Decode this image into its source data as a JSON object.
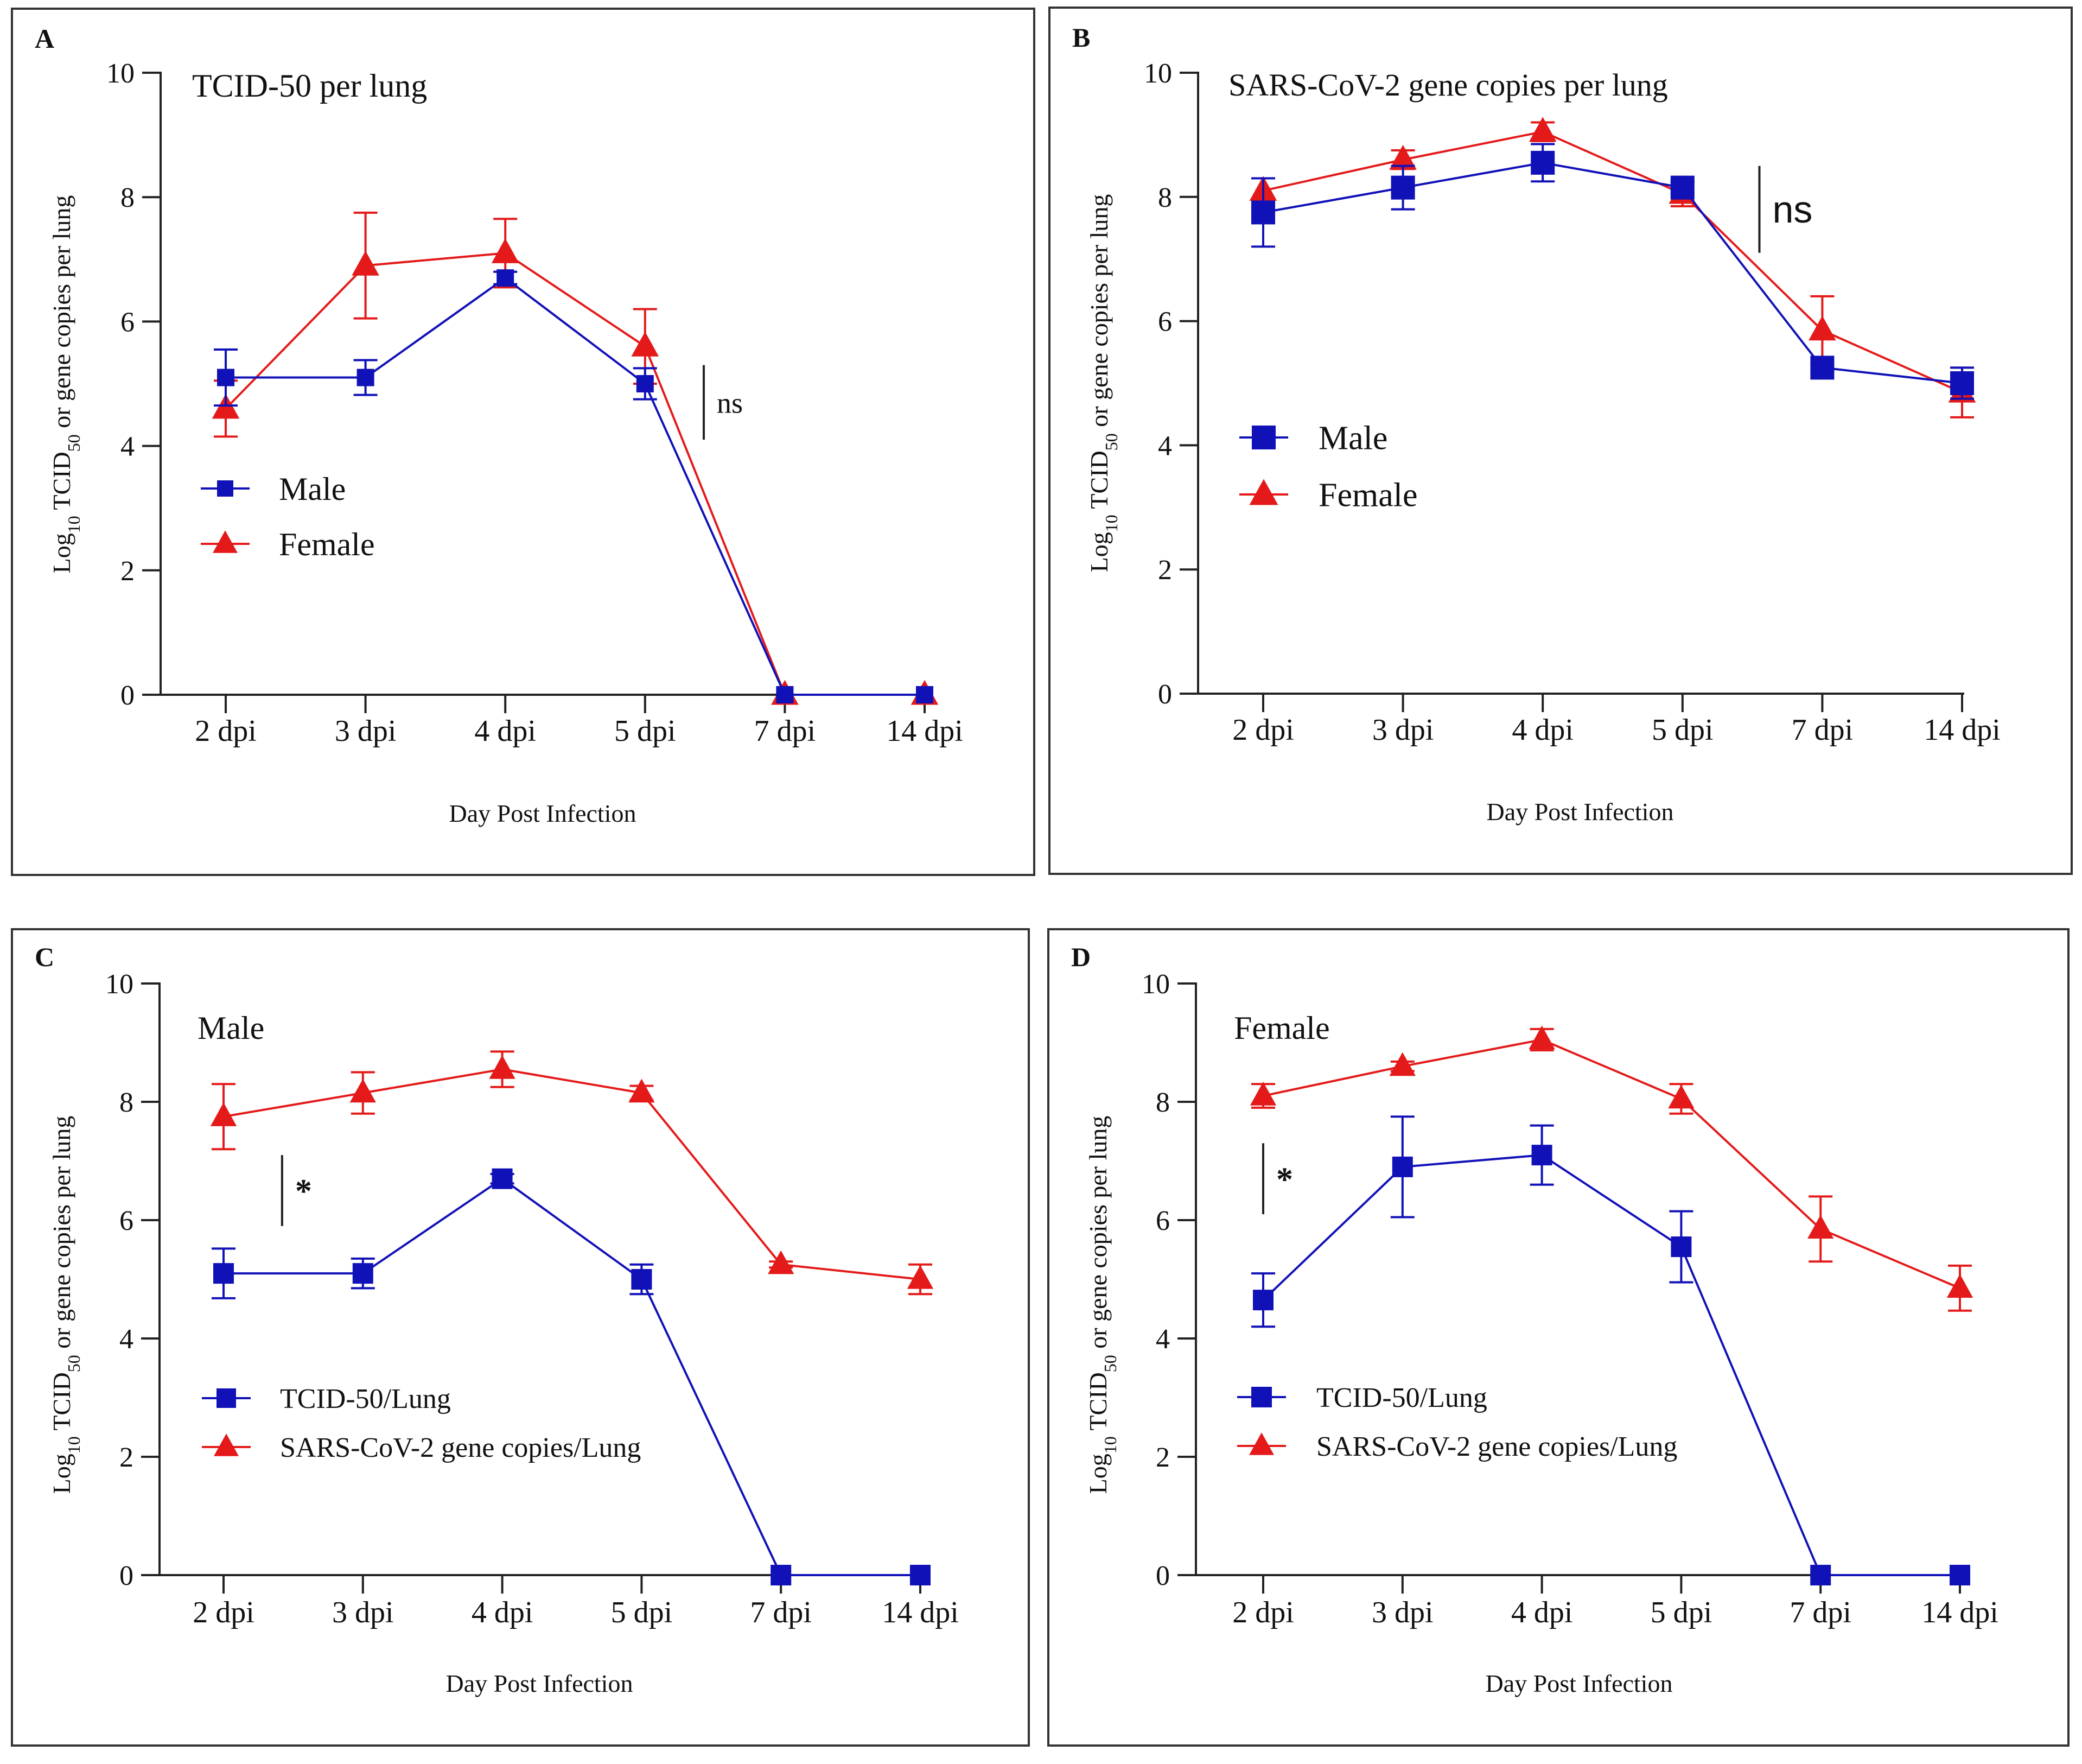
{
  "colors": {
    "male": "#1111b8",
    "female": "#e41a1a",
    "axis": "#222222",
    "text": "#111111"
  },
  "chart_data": [
    {
      "type": "line",
      "panel_letter": "A",
      "title": "TCID-50 per lung",
      "xlabel": "Day Post Infection",
      "ylabel_parts": [
        "Log",
        "10",
        " TCID",
        "50",
        " or gene copies per lung"
      ],
      "categories": [
        "2 dpi",
        "3 dpi",
        "4 dpi",
        "5 dpi",
        "7 dpi",
        "14 dpi"
      ],
      "ylim": [
        0,
        10
      ],
      "yticks": [
        "0",
        "2",
        "4",
        "6",
        "8",
        "10"
      ],
      "annotation": {
        "label": "ns",
        "category_position": 3.42,
        "y_range": [
          4.1,
          5.3
        ]
      },
      "series": [
        {
          "name": "Male",
          "marker": "square",
          "color": "#1111b8",
          "values": [
            5.1,
            5.1,
            6.7,
            5.0,
            0,
            0
          ],
          "errors": [
            0.45,
            0.28,
            0.1,
            0.25,
            0,
            0
          ]
        },
        {
          "name": "Female",
          "marker": "triangle",
          "color": "#e41a1a",
          "values": [
            4.6,
            6.9,
            7.1,
            5.6,
            0,
            0
          ],
          "errors": [
            0.45,
            0.85,
            0.55,
            0.6,
            0,
            0
          ]
        }
      ]
    },
    {
      "type": "line",
      "panel_letter": "B",
      "title": "SARS-CoV-2 gene copies per lung",
      "xlabel": "Day Post Infection",
      "ylabel_parts": [
        "Log",
        "10",
        " TCID",
        "50",
        " or gene copies per lung"
      ],
      "categories": [
        "2 dpi",
        "3 dpi",
        "4 dpi",
        "5 dpi",
        "7 dpi",
        "14 dpi"
      ],
      "ylim": [
        0,
        10
      ],
      "yticks": [
        "0",
        "2",
        "4",
        "6",
        "8",
        "10"
      ],
      "annotation": {
        "label": "ns",
        "category_position": 3.55,
        "y_range": [
          7.1,
          8.5
        ]
      },
      "series": [
        {
          "name": "Male",
          "marker": "square",
          "color": "#1111b8",
          "values": [
            7.75,
            8.15,
            8.55,
            8.15,
            5.25,
            5.0
          ],
          "errors": [
            0.55,
            0.35,
            0.3,
            0.1,
            0.05,
            0.25
          ]
        },
        {
          "name": "Female",
          "marker": "triangle",
          "color": "#e41a1a",
          "values": [
            8.1,
            8.6,
            9.05,
            8.05,
            5.85,
            4.85
          ],
          "errors": [
            0.2,
            0.15,
            0.15,
            0.2,
            0.55,
            0.4
          ]
        }
      ]
    },
    {
      "type": "line",
      "panel_letter": "C",
      "title": "Male",
      "xlabel": "Day Post Infection",
      "ylabel_parts": [
        "Log",
        "10",
        " TCID",
        "50",
        " or gene copies per lung"
      ],
      "categories": [
        "2 dpi",
        "3 dpi",
        "4 dpi",
        "5 dpi",
        "7 dpi",
        "14 dpi"
      ],
      "ylim": [
        0,
        10
      ],
      "yticks": [
        "0",
        "2",
        "4",
        "6",
        "8",
        "10"
      ],
      "annotation": {
        "label": "*",
        "category_position": 0.42,
        "y_range": [
          5.9,
          7.1
        ]
      },
      "series": [
        {
          "name": "TCID-50/Lung",
          "marker": "square",
          "color": "#1111b8",
          "values": [
            5.1,
            5.1,
            6.7,
            5.0,
            0,
            0
          ],
          "errors": [
            0.42,
            0.25,
            0.08,
            0.25,
            0,
            0
          ]
        },
        {
          "name": "SARS-CoV-2 gene copies/Lung",
          "marker": "triangle",
          "color": "#e41a1a",
          "values": [
            7.75,
            8.15,
            8.55,
            8.15,
            5.25,
            5.0
          ],
          "errors": [
            0.55,
            0.35,
            0.3,
            0.12,
            0.05,
            0.25
          ]
        }
      ]
    },
    {
      "type": "line",
      "panel_letter": "D",
      "title": "Female",
      "xlabel": "Day Post Infection",
      "ylabel_parts": [
        "Log",
        "10",
        " TCID",
        "50",
        " or gene copies per lung"
      ],
      "categories": [
        "2 dpi",
        "3 dpi",
        "4 dpi",
        "5 dpi",
        "7 dpi",
        "14 dpi"
      ],
      "ylim": [
        0,
        10
      ],
      "yticks": [
        "0",
        "2",
        "4",
        "6",
        "8",
        "10"
      ],
      "annotation": {
        "label": "*",
        "category_position": 0.0,
        "y_range": [
          6.1,
          7.3
        ]
      },
      "series": [
        {
          "name": "TCID-50/Lung",
          "marker": "square",
          "color": "#1111b8",
          "values": [
            4.65,
            6.9,
            7.1,
            5.55,
            0,
            0
          ],
          "errors": [
            0.45,
            0.85,
            0.5,
            0.6,
            0,
            0
          ]
        },
        {
          "name": "SARS-CoV-2 gene copies/Lung",
          "marker": "triangle",
          "color": "#e41a1a",
          "values": [
            8.1,
            8.6,
            9.05,
            8.05,
            5.85,
            4.85
          ],
          "errors": [
            0.2,
            0.08,
            0.18,
            0.25,
            0.55,
            0.38
          ]
        }
      ]
    }
  ]
}
